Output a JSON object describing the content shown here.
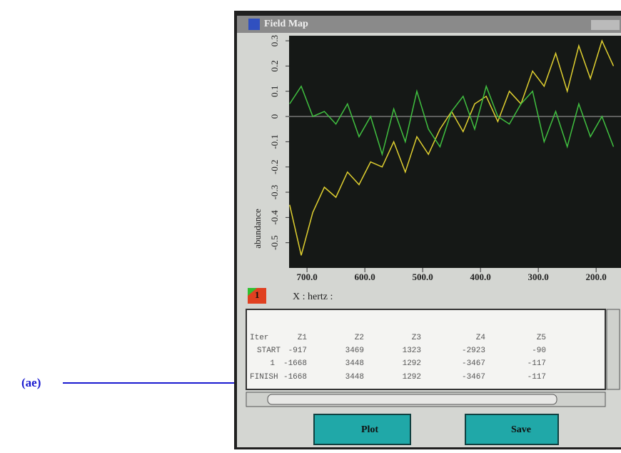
{
  "annotation": {
    "label": "(ae)"
  },
  "window": {
    "title": "Field Map"
  },
  "chart_data": {
    "type": "line",
    "y_label": "abundance",
    "x_label": "X : hertz :",
    "indicator": "1",
    "x": [
      730,
      710,
      690,
      670,
      650,
      630,
      610,
      590,
      570,
      550,
      530,
      510,
      490,
      470,
      450,
      430,
      410,
      390,
      370,
      350,
      330,
      310,
      290,
      270,
      250,
      230,
      210,
      190,
      170
    ],
    "series": [
      {
        "color": "#e0d030",
        "values": [
          -0.35,
          -0.55,
          -0.38,
          -0.28,
          -0.32,
          -0.22,
          -0.27,
          -0.18,
          -0.2,
          -0.1,
          -0.22,
          -0.08,
          -0.15,
          -0.05,
          0.02,
          -0.06,
          0.05,
          0.08,
          -0.02,
          0.1,
          0.05,
          0.18,
          0.12,
          0.25,
          0.1,
          0.28,
          0.15,
          0.3,
          0.2
        ]
      },
      {
        "color": "#40c040",
        "values": [
          0.05,
          0.12,
          0.0,
          0.02,
          -0.03,
          0.05,
          -0.08,
          0.0,
          -0.15,
          0.03,
          -0.1,
          0.1,
          -0.05,
          -0.12,
          0.02,
          0.08,
          -0.05,
          0.12,
          0.0,
          -0.03,
          0.05,
          0.1,
          -0.1,
          0.02,
          -0.12,
          0.05,
          -0.08,
          0.0,
          -0.12
        ]
      }
    ],
    "xlim": [
      731,
      157
    ],
    "xticks": [
      {
        "value": 700,
        "label": "700.0"
      },
      {
        "value": 600,
        "label": "600.0"
      },
      {
        "value": 500,
        "label": "500.0"
      },
      {
        "value": 400,
        "label": "400.0"
      },
      {
        "value": 300,
        "label": "300.0"
      },
      {
        "value": 200,
        "label": "200.0"
      }
    ],
    "ylim": [
      -0.6,
      0.32
    ],
    "yticks": [
      -0.5,
      -0.4,
      -0.3,
      -0.2,
      -0.1,
      0,
      0.1,
      0.2,
      0.3
    ]
  },
  "table": {
    "header": [
      "Iter",
      "Z1",
      "Z2",
      "Z3",
      "Z4",
      "Z5"
    ],
    "rows": [
      [
        "START",
        "-917",
        "3469",
        "1323",
        "-2923",
        "-90"
      ],
      [
        "1",
        "-1668",
        "3448",
        "1292",
        "-3467",
        "-117"
      ],
      [
        "FINISH",
        "-1668",
        "3448",
        "1292",
        "-3467",
        "-117"
      ]
    ]
  },
  "buttons": {
    "plot": "Plot",
    "save": "Save"
  }
}
